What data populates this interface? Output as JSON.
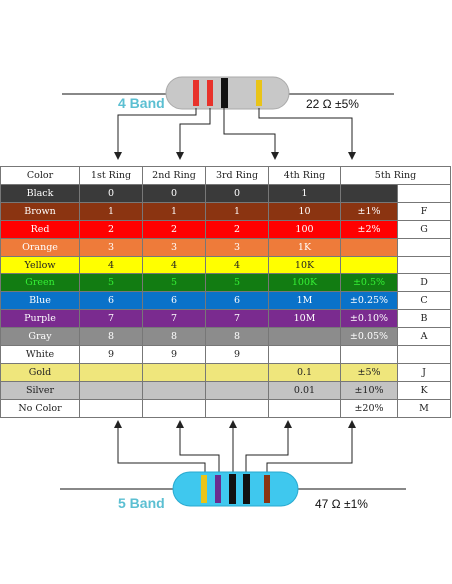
{
  "band4": {
    "title": "4 Band",
    "value": "22 Ω  ±5%"
  },
  "band5": {
    "title": "5 Band",
    "value": "47 Ω  ±1%"
  },
  "table": {
    "headers": [
      "Color",
      "1st Ring",
      "2nd Ring",
      "3rd Ring",
      "4th Ring",
      "5th Ring",
      ""
    ],
    "rows": [
      {
        "name": "Black",
        "bg": "#3a3a3a",
        "fg": "#ffffff",
        "r1": "0",
        "r2": "0",
        "r3": "0",
        "r4": "1",
        "r5": "",
        "code": ""
      },
      {
        "name": "Brown",
        "bg": "#8b3411",
        "fg": "#ffffff",
        "r1": "1",
        "r2": "1",
        "r3": "1",
        "r4": "10",
        "r5": "±1%",
        "code": "F"
      },
      {
        "name": "Red",
        "bg": "#ff0000",
        "fg": "#ffffff",
        "r1": "2",
        "r2": "2",
        "r3": "2",
        "r4": "100",
        "r5": "±2%",
        "code": "G"
      },
      {
        "name": "Orange",
        "bg": "#ee7b3a",
        "fg": "#ffffff",
        "r1": "3",
        "r2": "3",
        "r3": "3",
        "r4": "1K",
        "r5": "",
        "code": ""
      },
      {
        "name": "Yellow",
        "bg": "#ffff00",
        "fg": "#222222",
        "r1": "4",
        "r2": "4",
        "r3": "4",
        "r4": "10K",
        "r5": "",
        "code": ""
      },
      {
        "name": "Green",
        "bg": "#127c12",
        "fg": "#35f035",
        "r1": "5",
        "r2": "5",
        "r3": "5",
        "r4": "100K",
        "r5": "±0.5%",
        "code": "D"
      },
      {
        "name": "Blue",
        "bg": "#0a72c9",
        "fg": "#ffffff",
        "r1": "6",
        "r2": "6",
        "r3": "6",
        "r4": "1M",
        "r5": "±0.25%",
        "code": "C"
      },
      {
        "name": "Purple",
        "bg": "#7a2b8f",
        "fg": "#ffffff",
        "r1": "7",
        "r2": "7",
        "r3": "7",
        "r4": "10M",
        "r5": "±0.10%",
        "code": "B"
      },
      {
        "name": "Gray",
        "bg": "#8c8c8c",
        "fg": "#ffffff",
        "r1": "8",
        "r2": "8",
        "r3": "8",
        "r4": "",
        "r5": "±0.05%",
        "code": "A"
      },
      {
        "name": "White",
        "bg": "#ffffff",
        "fg": "#222222",
        "r1": "9",
        "r2": "9",
        "r3": "9",
        "r4": "",
        "r5": "",
        "code": ""
      },
      {
        "name": "Gold",
        "bg": "#efe67c",
        "fg": "#222222",
        "r1": "",
        "r2": "",
        "r3": "",
        "r4": "0.1",
        "r5": "±5%",
        "code": "J"
      },
      {
        "name": "Silver",
        "bg": "#c3c3c3",
        "fg": "#222222",
        "r1": "",
        "r2": "",
        "r3": "",
        "r4": "0.01",
        "r5": "±10%",
        "code": "K"
      },
      {
        "name": "No   Color",
        "bg": "#ffffff",
        "fg": "#222222",
        "r1": "",
        "r2": "",
        "r3": "",
        "r4": "",
        "r5": "±20%",
        "code": "M"
      }
    ]
  },
  "colors": {
    "resistor_body": "#c8c8c8",
    "resistor_body_5band": "#3fc8ee",
    "lead": "#777777",
    "arrow": "#222222"
  },
  "resistor4_bands": [
    "#e8322b",
    "#e8322b",
    "#111111",
    "#e9c418"
  ],
  "resistor5_bands": [
    "#e9c418",
    "#6a2b8f",
    "#111111",
    "#111111",
    "#8b3411"
  ]
}
